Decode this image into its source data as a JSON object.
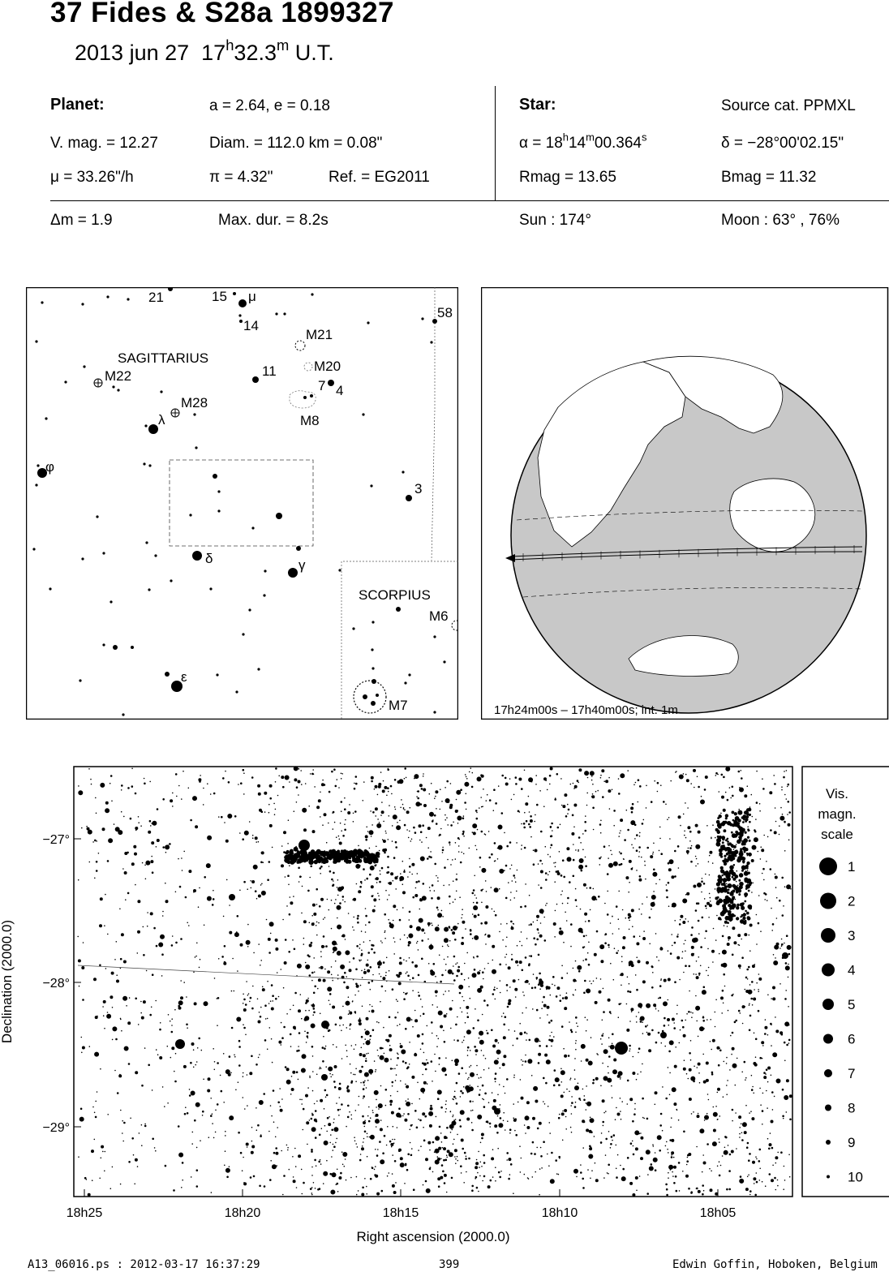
{
  "header": {
    "title": "37 Fides  &  S28a 1899327",
    "date": "2013 jun 27",
    "time_h": "17",
    "time_h_unit": "h",
    "time_m": "32.3",
    "time_m_unit": "m",
    "time_suffix": "U.T."
  },
  "planet": {
    "heading": "Planet:",
    "orbit": "a = 2.64, e = 0.18",
    "vmag": "V. mag. = 12.27",
    "diam": "Diam. = 112.0 km = 0.08\"",
    "mu": "μ =  33.26\"/h",
    "pi": "π =  4.32\"",
    "ref": "Ref. = EG2011"
  },
  "star": {
    "heading": "Star:",
    "source": "Source cat.  PPMXL",
    "alpha_prefix": "α = 18",
    "alpha_h": "h",
    "alpha_min": "14",
    "alpha_m": "m",
    "alpha_sec": "00.364",
    "alpha_s": "s",
    "delta": "δ = −28°00'02.15\"",
    "rmag": "Rmag = 13.65",
    "bmag": "Bmag = 11.32"
  },
  "event": {
    "dm": "Δm = 1.9",
    "maxdur": "Max. dur. = 8.2s",
    "sun": "Sun : 174°",
    "moon": "Moon :  63° , 76%"
  },
  "finder": {
    "constellations": [
      "SAGITTARIUS",
      "SCORPIUS"
    ],
    "labels": [
      {
        "text": "21",
        "key": "21"
      },
      {
        "text": "15",
        "key": "15"
      },
      {
        "text": "μ",
        "key": "mu"
      },
      {
        "text": "14",
        "key": "14"
      },
      {
        "text": "58",
        "key": "58"
      },
      {
        "text": "M21",
        "key": "M21"
      },
      {
        "text": "M20",
        "key": "M20"
      },
      {
        "text": "M22",
        "key": "M22"
      },
      {
        "text": "11",
        "key": "11"
      },
      {
        "text": "7",
        "key": "7"
      },
      {
        "text": "4",
        "key": "4"
      },
      {
        "text": "M28",
        "key": "M28"
      },
      {
        "text": "λ",
        "key": "lambda"
      },
      {
        "text": "M8",
        "key": "M8"
      },
      {
        "text": "φ",
        "key": "phi"
      },
      {
        "text": "3",
        "key": "3"
      },
      {
        "text": "δ",
        "key": "delta"
      },
      {
        "text": "γ",
        "key": "gamma"
      },
      {
        "text": "M6",
        "key": "M6"
      },
      {
        "text": "ε",
        "key": "epsilon"
      },
      {
        "text": "M7",
        "key": "M7"
      }
    ]
  },
  "globe": {
    "caption": "17h24m00s – 17h40m00s; int.  1m"
  },
  "starchart": {
    "dec_ticks": [
      "−27°",
      "−28°",
      "−29°"
    ],
    "ra_ticks": [
      "18h25",
      "18h20",
      "18h15",
      "18h10",
      "18h05"
    ],
    "xlabel": "Right ascension (2000.0)",
    "ylabel": "Declination (2000.0)"
  },
  "legend": {
    "title_lines": [
      "Vis.",
      "magn.",
      "scale"
    ],
    "magnitudes": [
      "1",
      "2",
      "3",
      "4",
      "5",
      "6",
      "7",
      "8",
      "9",
      "10"
    ]
  },
  "footer": {
    "file": "A13_06016.ps : 2012-03-17 16:37:29",
    "page": "399",
    "author": "Edwin Goffin, Hoboken, Belgium"
  }
}
